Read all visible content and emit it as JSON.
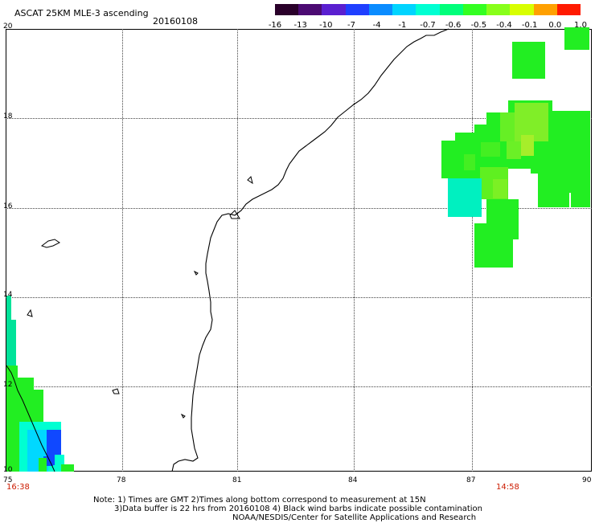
{
  "header": {
    "title": "ASCAT 25KM MLE-3 ascending",
    "date": "20160108"
  },
  "colorbar": {
    "labels": [
      "-16",
      "-13",
      "-10",
      "-7",
      "-4",
      "-1",
      "-0.7",
      "-0.6",
      "-0.5",
      "-0.4",
      "-0.1",
      "0.0",
      "1.0"
    ],
    "colors": [
      "#2a002a",
      "#4b0a72",
      "#5a1fd0",
      "#1f3fff",
      "#0a8cff",
      "#00d4ff",
      "#00ffd2",
      "#00ff7a",
      "#33ff22",
      "#88ff1a",
      "#d8ff00",
      "#ffa000",
      "#ff1a00"
    ]
  },
  "axes": {
    "lat_labels": [
      "20",
      "18",
      "16",
      "14",
      "12",
      "10"
    ],
    "lon_labels": [
      "75",
      "78",
      "81",
      "84",
      "87",
      "90"
    ]
  },
  "time_labels": {
    "left": "16:38",
    "right": "14:58"
  },
  "notes": {
    "line1": "Note: 1) Times are GMT 2)Times along bottom correspond to measurement at 15N",
    "line2": "3)Data buffer is 22 hrs from 20160108 4) Black wind barbs indicate possible contamination",
    "line3": "NOAA/NESDIS/Center for Satellite Applications and Research"
  },
  "palette": {
    "green": "#22ee22",
    "lime": "#88f026",
    "aqua": "#00f0c0",
    "teal": "#00e39a",
    "cyan": "#00d8ff",
    "blue": "#1048ff",
    "coast": "#000000"
  }
}
